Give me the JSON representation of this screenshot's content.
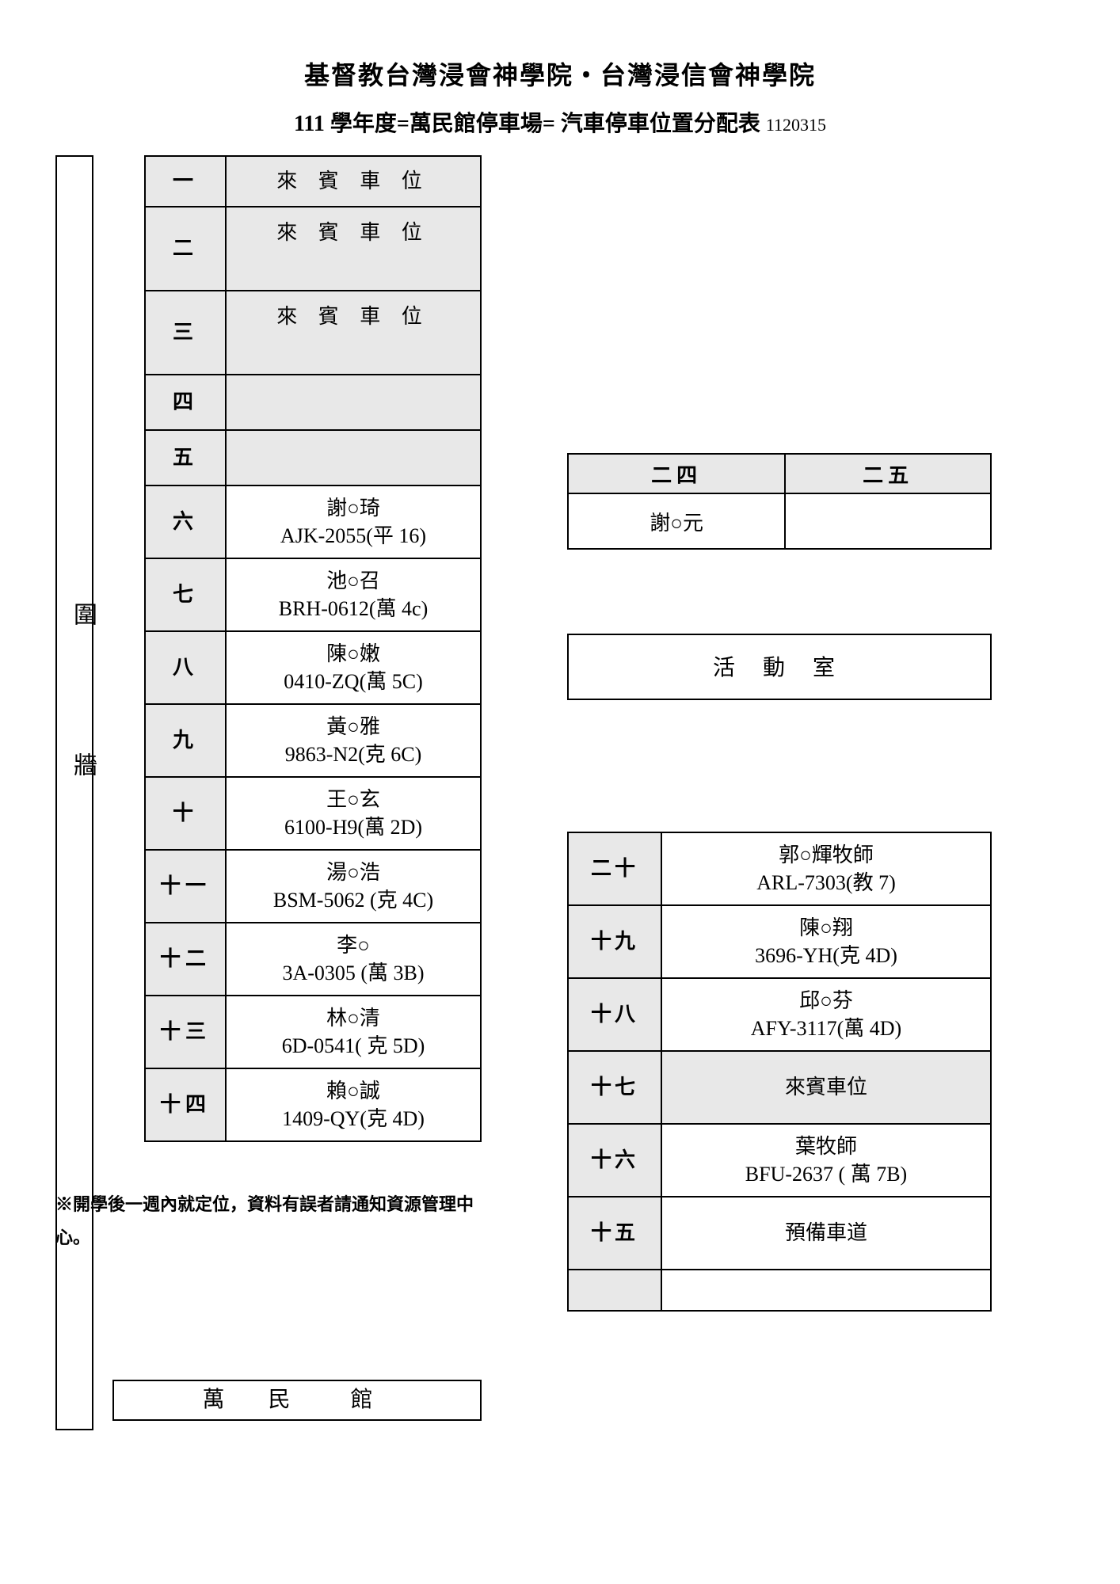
{
  "header": {
    "title1": "基督教台灣浸會神學院・台灣浸信會神學院",
    "title2_prefix": "111 學年度=",
    "title2_bold": "萬民館停車場",
    "title2_eq": "=",
    "title2_rest": " 汽車停車位置分配表 ",
    "title2_date": "1120315"
  },
  "wall_label": "圍牆",
  "left_table": {
    "rows": [
      {
        "num": "一",
        "text": "來 賓 車 位",
        "guest": true,
        "h1": true
      },
      {
        "num": "二",
        "text": "來 賓 車 位",
        "guest": true
      },
      {
        "num": "三",
        "text": "來 賓 車 位",
        "guest": true
      },
      {
        "num": "四",
        "text": "",
        "empty": true,
        "dashed": true
      },
      {
        "num": "五",
        "text": "",
        "empty": true
      },
      {
        "num": "六",
        "name": "謝○琦",
        "plate": "AJK-2055(平 16)"
      },
      {
        "num": "七",
        "name": "池○召",
        "plate": "BRH-0612(萬 4c)"
      },
      {
        "num": "八",
        "name": "陳○嫩",
        "plate": "0410-ZQ(萬 5C)"
      },
      {
        "num": "九",
        "name": "黃○雅",
        "plate": "9863-N2(克 6C)"
      },
      {
        "num": "十",
        "name": "王○玄",
        "plate": "6100-H9(萬 2D)"
      },
      {
        "num": "十一",
        "name": "湯○浩",
        "plate": "BSM-5062 (克 4C)"
      },
      {
        "num": "十二",
        "name": "李○",
        "plate": "3A-0305 (萬 3B)"
      },
      {
        "num": "十三",
        "name": "林○清",
        "plate": "6D-0541( 克 5D)"
      },
      {
        "num": "十四",
        "name": "賴○誠",
        "plate": "1409-QY(克 4D)"
      }
    ]
  },
  "table24": {
    "h1": "二四",
    "h2": "二五",
    "c1": "謝○元",
    "c2": ""
  },
  "activity_label": "活 動 室",
  "right_table": {
    "rows": [
      {
        "num": "二十",
        "name": "郭○輝牧師",
        "plate": "ARL-7303(教 7)"
      },
      {
        "num": "十九",
        "name": "陳○翔",
        "plate": "3696-YH(克 4D)"
      },
      {
        "num": "十八",
        "name": "邱○芬",
        "plate": "AFY-3117(萬 4D)"
      },
      {
        "num": "十七",
        "text": "來賓車位",
        "guest": true
      },
      {
        "num": "十六",
        "name": "葉牧師",
        "plate": "BFU-2637 ( 萬 7B)"
      },
      {
        "num": "十五",
        "text": "預備車道"
      },
      {
        "num": "",
        "text": "",
        "short": true
      }
    ]
  },
  "footnote": "※開學後一週內就定位，資料有誤者請通知資源管理中心。",
  "wanmin_label": "萬 民　館"
}
